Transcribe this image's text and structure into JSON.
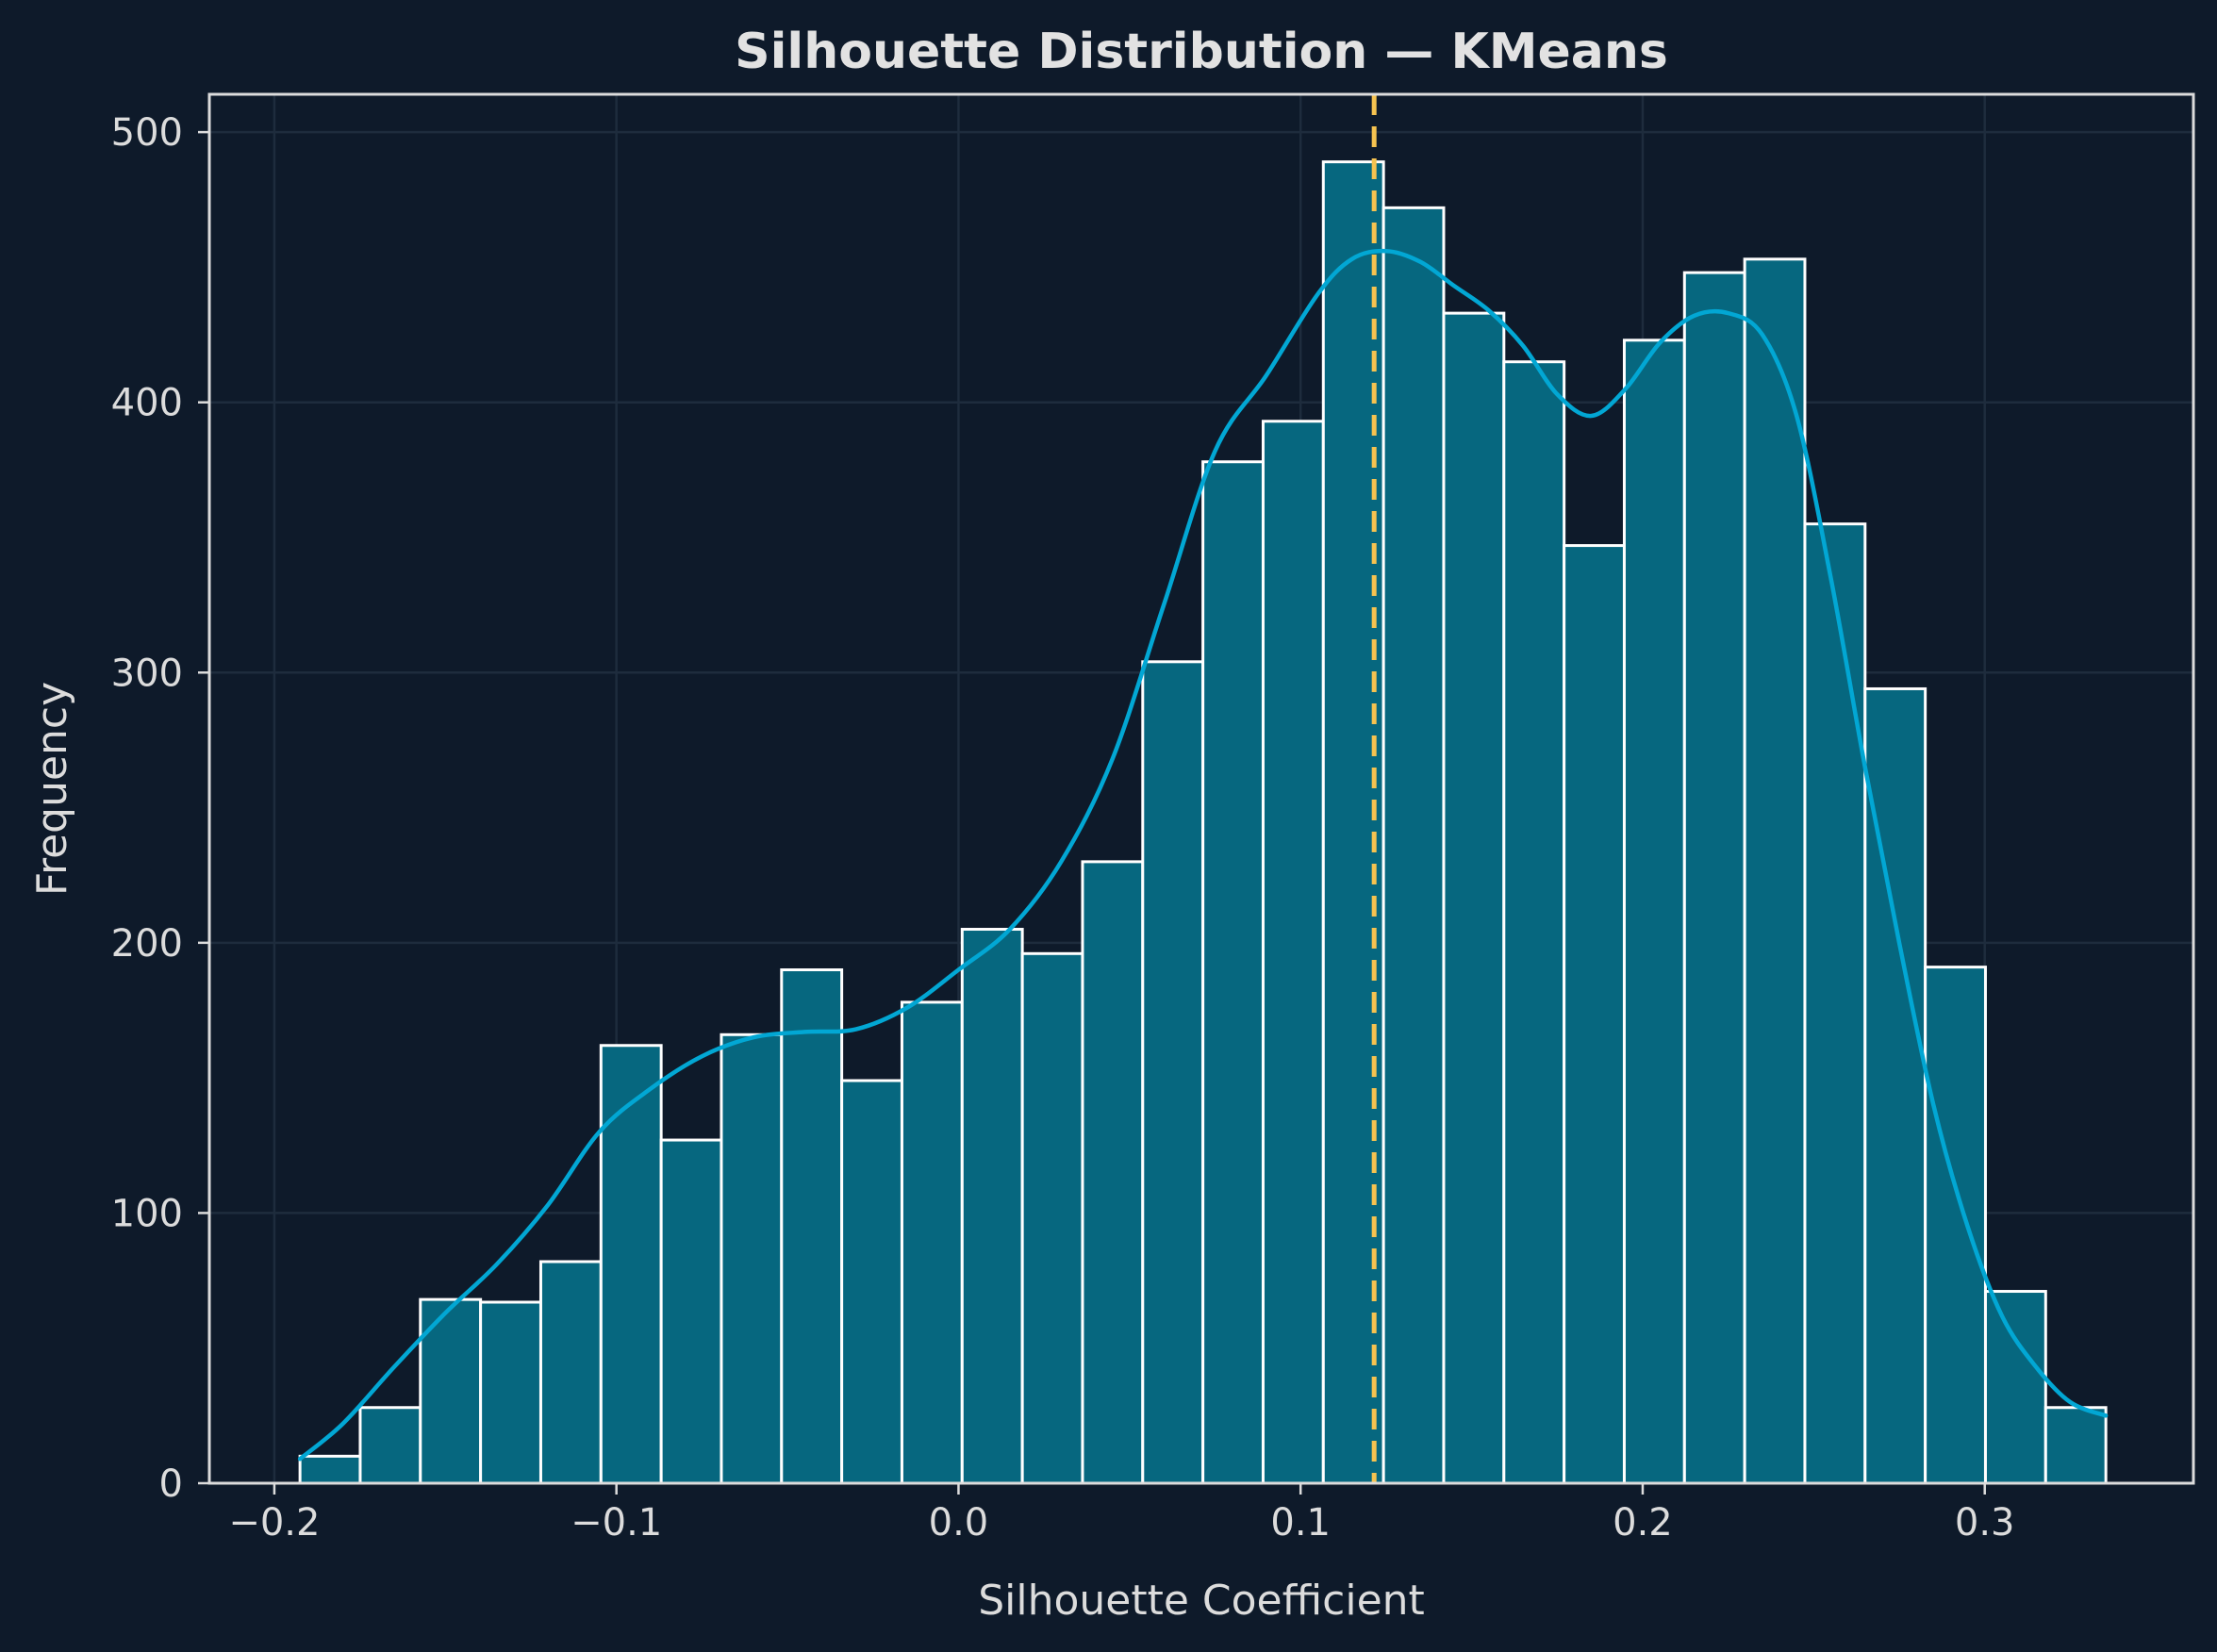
{
  "chart_data": {
    "type": "bar",
    "title": "Silhouette Distribution — KMeans",
    "xlabel": "Silhouette Coefficient",
    "ylabel": "Frequency",
    "xlim": [
      -0.219,
      0.361
    ],
    "ylim": [
      0,
      514
    ],
    "xticks": [
      {
        "value": -0.2,
        "label": "−0.2"
      },
      {
        "value": -0.1,
        "label": "−0.1"
      },
      {
        "value": 0.0,
        "label": "0.0"
      },
      {
        "value": 0.1,
        "label": "0.1"
      },
      {
        "value": 0.2,
        "label": "0.2"
      },
      {
        "value": 0.3,
        "label": "0.3"
      }
    ],
    "yticks": [
      {
        "value": 0,
        "label": "0"
      },
      {
        "value": 100,
        "label": "100"
      },
      {
        "value": 200,
        "label": "200"
      },
      {
        "value": 300,
        "label": "300"
      },
      {
        "value": 400,
        "label": "400"
      },
      {
        "value": 500,
        "label": "500"
      }
    ],
    "grid": true,
    "bins": {
      "start": -0.1925,
      "end": 0.3354,
      "counts": [
        10,
        28,
        68,
        67,
        82,
        162,
        127,
        166,
        190,
        149,
        178,
        205,
        196,
        230,
        304,
        378,
        393,
        489,
        472,
        433,
        415,
        347,
        423,
        448,
        453,
        355,
        294,
        191,
        71,
        28
      ]
    },
    "kde": {
      "x": [
        -0.1925,
        -0.18,
        -0.165,
        -0.15,
        -0.135,
        -0.12,
        -0.105,
        -0.09,
        -0.075,
        -0.06,
        -0.045,
        -0.03,
        -0.015,
        0.0,
        0.015,
        0.03,
        0.045,
        0.06,
        0.075,
        0.09,
        0.105,
        0.115,
        0.125,
        0.135,
        0.145,
        0.155,
        0.165,
        0.175,
        0.185,
        0.195,
        0.205,
        0.215,
        0.225,
        0.235,
        0.245,
        0.255,
        0.265,
        0.275,
        0.285,
        0.295,
        0.305,
        0.315,
        0.325,
        0.3354
      ],
      "y": [
        9,
        22,
        43,
        63,
        81,
        103,
        130,
        146,
        158,
        165,
        167,
        168,
        176,
        190,
        205,
        230,
        268,
        325,
        382,
        410,
        440,
        453,
        456,
        452,
        443,
        434,
        421,
        403,
        395,
        405,
        422,
        432,
        433,
        425,
        395,
        335,
        265,
        200,
        140,
        95,
        62,
        43,
        30,
        25
      ]
    },
    "mean_line": {
      "value": 0.1215,
      "style": "dashed"
    },
    "colors": {
      "background": "#0e1a2a",
      "bar_fill": "#06677f",
      "bar_edge": "#ffffff",
      "kde_line": "#02a7d4",
      "mean_line": "#f6c350",
      "grid": "#1e2c3d",
      "text": "#dcdcdc"
    }
  }
}
